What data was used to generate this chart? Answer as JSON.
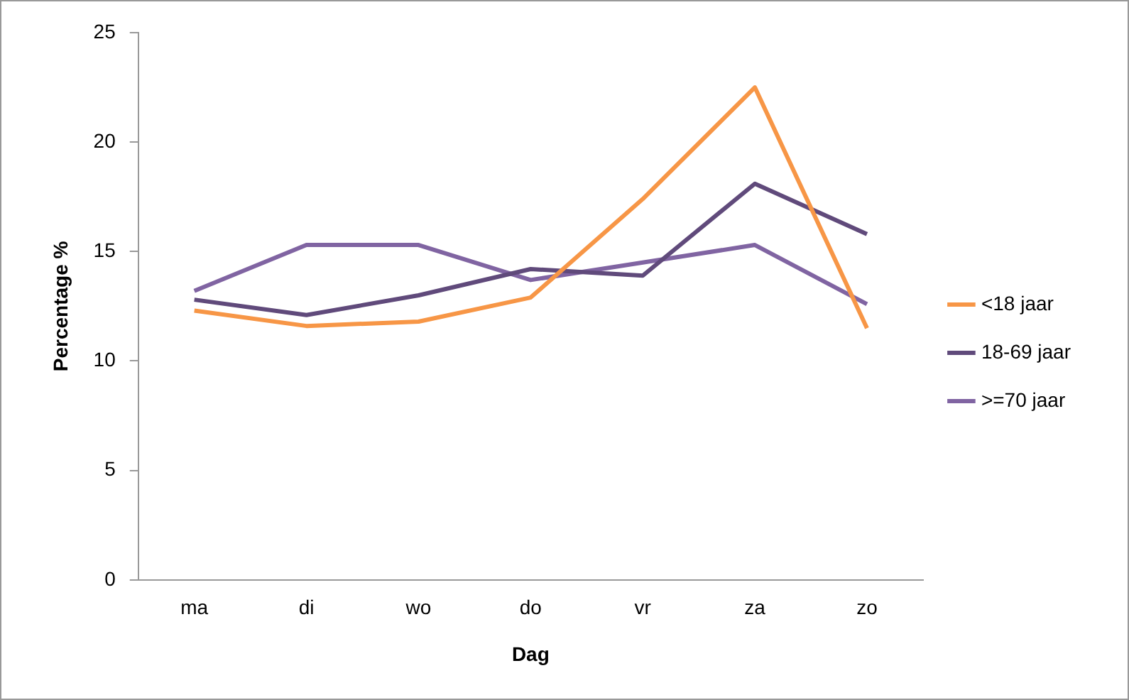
{
  "chart_data": {
    "type": "line",
    "xlabel": "Dag",
    "ylabel": "Percentage %",
    "categories": [
      "ma",
      "di",
      "wo",
      "do",
      "vr",
      "za",
      "zo"
    ],
    "series": [
      {
        "name": "<18 jaar",
        "color": "#f79646",
        "values": [
          12.3,
          11.6,
          11.8,
          12.9,
          17.4,
          22.5,
          11.5
        ]
      },
      {
        "name": "18-69 jaar",
        "color": "#604a7b",
        "values": [
          12.8,
          12.1,
          13.0,
          14.2,
          13.9,
          18.1,
          15.8
        ]
      },
      {
        "name": ">=70 jaar",
        "color": "#8064a2",
        "values": [
          13.2,
          15.3,
          15.3,
          13.7,
          14.5,
          15.3,
          12.6
        ]
      }
    ],
    "ylim": [
      0,
      25
    ],
    "yticks": [
      0,
      5,
      10,
      15,
      20,
      25
    ],
    "grid": false,
    "legend": "right",
    "marker": "none",
    "line_style": "solid"
  }
}
